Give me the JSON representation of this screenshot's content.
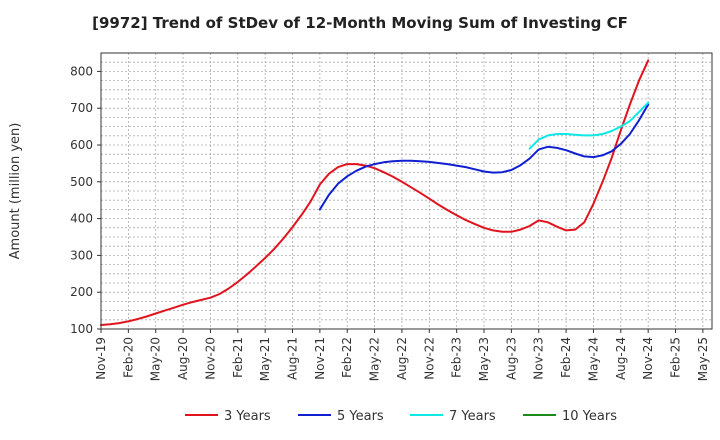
{
  "chart_data": {
    "type": "line",
    "title": "[9972]  Trend of StDev of 12-Month Moving Sum of Investing CF",
    "ylabel": "Amount (million yen)",
    "xlabel": "",
    "ylim": [
      100,
      850
    ],
    "y_ticks": [
      100,
      200,
      300,
      400,
      500,
      600,
      700,
      800
    ],
    "x_ticks": [
      "Nov-19",
      "Feb-20",
      "May-20",
      "Aug-20",
      "Nov-20",
      "Feb-21",
      "May-21",
      "Aug-21",
      "Nov-21",
      "Feb-22",
      "May-22",
      "Aug-22",
      "Nov-22",
      "Feb-23",
      "May-23",
      "Aug-23",
      "Nov-23",
      "Feb-24",
      "May-24",
      "Aug-24",
      "Nov-24",
      "Feb-25",
      "May-25"
    ],
    "grid": true,
    "legend_position": "bottom",
    "series": [
      {
        "name": "3 Years",
        "color": "#e0141e",
        "x": [
          "Nov-19",
          "Dec-19",
          "Jan-20",
          "Feb-20",
          "Mar-20",
          "Apr-20",
          "May-20",
          "Jun-20",
          "Jul-20",
          "Aug-20",
          "Sep-20",
          "Oct-20",
          "Nov-20",
          "Dec-20",
          "Jan-21",
          "Feb-21",
          "Mar-21",
          "Apr-21",
          "May-21",
          "Jun-21",
          "Jul-21",
          "Aug-21",
          "Sep-21",
          "Oct-21",
          "Nov-21",
          "Dec-21",
          "Jan-22",
          "Feb-22",
          "Mar-22",
          "Apr-22",
          "May-22",
          "Jun-22",
          "Jul-22",
          "Aug-22",
          "Sep-22",
          "Oct-22",
          "Nov-22",
          "Dec-22",
          "Jan-23",
          "Feb-23",
          "Mar-23",
          "Apr-23",
          "May-23",
          "Jun-23",
          "Jul-23",
          "Aug-23",
          "Sep-23",
          "Oct-23",
          "Nov-23",
          "Dec-23",
          "Jan-24",
          "Feb-24",
          "Mar-24",
          "Apr-24",
          "May-24",
          "Jun-24",
          "Jul-24",
          "Aug-24",
          "Sep-24",
          "Oct-24",
          "Nov-24"
        ],
        "values": [
          111,
          113,
          116,
          121,
          127,
          134,
          142,
          150,
          158,
          166,
          173,
          179,
          185,
          195,
          210,
          228,
          248,
          270,
          293,
          318,
          346,
          377,
          410,
          447,
          493,
          522,
          540,
          548,
          548,
          544,
          537,
          526,
          514,
          500,
          485,
          470,
          454,
          438,
          423,
          409,
          396,
          385,
          375,
          368,
          364,
          364,
          370,
          380,
          395,
          390,
          378,
          368,
          370,
          390,
          440,
          500,
          565,
          640,
          710,
          775,
          830
        ]
      },
      {
        "name": "5 Years",
        "color": "#1020d0",
        "x": [
          "Nov-21",
          "Dec-21",
          "Jan-22",
          "Feb-22",
          "Mar-22",
          "Apr-22",
          "May-22",
          "Jun-22",
          "Jul-22",
          "Aug-22",
          "Sep-22",
          "Oct-22",
          "Nov-22",
          "Dec-22",
          "Jan-23",
          "Feb-23",
          "Mar-23",
          "Apr-23",
          "May-23",
          "Jun-23",
          "Jul-23",
          "Aug-23",
          "Sep-23",
          "Oct-23",
          "Nov-23",
          "Dec-23",
          "Jan-24",
          "Feb-24",
          "Mar-24",
          "Apr-24",
          "May-24",
          "Jun-24",
          "Jul-24",
          "Aug-24",
          "Sep-24",
          "Oct-24",
          "Nov-24"
        ],
        "values": [
          425,
          465,
          495,
          515,
          530,
          541,
          548,
          553,
          556,
          557,
          557,
          556,
          554,
          551,
          548,
          544,
          540,
          534,
          528,
          525,
          526,
          532,
          545,
          563,
          588,
          595,
          592,
          586,
          577,
          569,
          567,
          572,
          583,
          603,
          630,
          667,
          710
        ]
      },
      {
        "name": "7 Years",
        "color": "#10e8e8",
        "x": [
          "Oct-23",
          "Nov-23",
          "Dec-23",
          "Jan-24",
          "Feb-24",
          "Mar-24",
          "Apr-24",
          "May-24",
          "Jun-24",
          "Jul-24",
          "Aug-24",
          "Sep-24",
          "Oct-24",
          "Nov-24"
        ],
        "values": [
          590,
          615,
          626,
          630,
          630,
          628,
          626,
          626,
          630,
          638,
          650,
          665,
          690,
          715
        ]
      },
      {
        "name": "10 Years",
        "color": "#1a8a1a",
        "x": [],
        "values": []
      }
    ]
  }
}
